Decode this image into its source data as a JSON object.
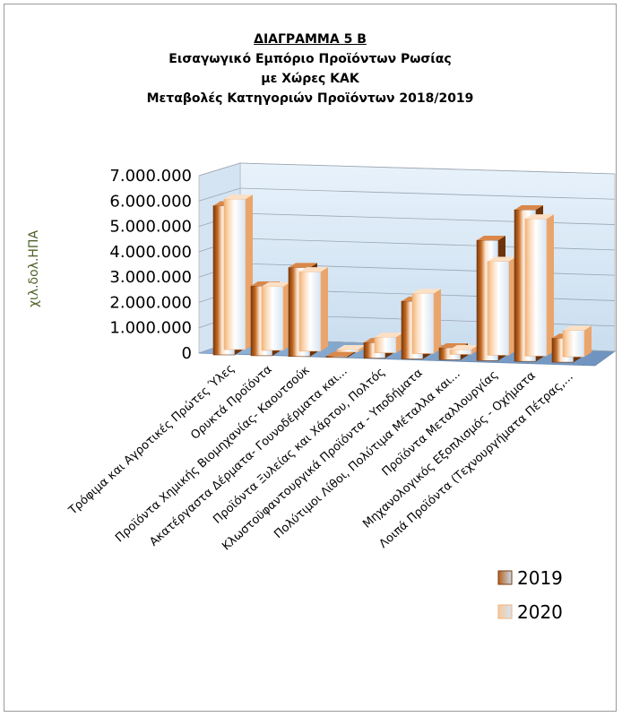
{
  "chart_data": {
    "type": "bar",
    "title_lines": [
      "ΔΙΑΓΡΑΜΜΑ 5 Β",
      "Εισαγωγικό Εμπόριο Προϊόντων Ρωσίας",
      "με Χώρες ΚΑΚ",
      "Μεταβολές Κατηγοριών Προϊόντων 2018/2019"
    ],
    "ylabel": "χιλ.δολ.ΗΠΑ",
    "ylim": [
      0,
      7000000
    ],
    "y_ticks": [
      0,
      1000000,
      2000000,
      3000000,
      4000000,
      5000000,
      6000000,
      7000000
    ],
    "y_tick_labels": [
      "0",
      "1.000.000",
      "2.000.000",
      "3.000.000",
      "4.000.000",
      "5.000.000",
      "6.000.000",
      "7.000.000"
    ],
    "categories": [
      "Τρόφιμα και Αγροτικές Πρώτες Ύλες",
      "Ορυκτά Προϊόντα",
      "Προϊόντα Χημικής Βιομηχανίας- Καουτσούκ",
      "Ακατέργαστα Δέρματα- Γουνοδέρματα και...",
      "Προϊόντα Ξυλείας και Χάρτου, Πολτός",
      "Κλωστοϋφαντουργικά Προϊόντα - Υποδήματα",
      "Πολύτιμοι Λίθοι, Πολύτιμα Μέταλλα και...",
      "Προϊόντα Μεταλλουργίας",
      "Μηχανολογικός Εξοπλισμός - Οχήματα",
      "Λοιπά Προϊόντα (Τεχνουργήματα Πέτρας,..."
    ],
    "series": [
      {
        "name": "2019",
        "values": [
          6200000,
          2900000,
          3700000,
          50000,
          650000,
          2400000,
          500000,
          5000000,
          6300000,
          1000000
        ]
      },
      {
        "name": "2020",
        "values": [
          6250000,
          2650000,
          3300000,
          100000,
          650000,
          2500000,
          200000,
          3900000,
          5700000,
          1100000
        ]
      }
    ],
    "grid": true,
    "legend_position": "right",
    "colors": {
      "2019": "#b8601a",
      "2020": "#f5c89e"
    }
  }
}
